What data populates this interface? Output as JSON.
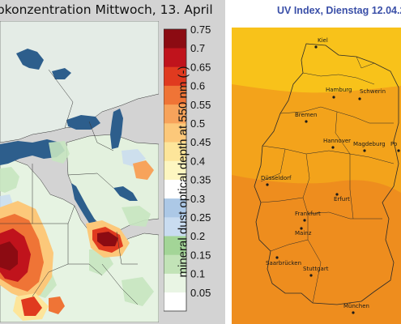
{
  "left_map": {
    "title": "ubkonzentration Mittwoch, 13. April",
    "colorbar_label": "mineral dust optical depth at 550 nm (-)",
    "colorbar_ticks": [
      "0.05",
      "0.1",
      "0.15",
      "0.2",
      "0.25",
      "0.3",
      "0.35",
      "0.4",
      "0.45",
      "0.5",
      "0.55",
      "0.6",
      "0.65",
      "0.7",
      "0.75"
    ],
    "colorbar_colors": [
      "#ffffff",
      "#e9f5e4",
      "#c2e3b7",
      "#a3d597",
      "#c9dcf0",
      "#acc8e6",
      "#ffffff",
      "#fdf6c0",
      "#fde59a",
      "#fcc87a",
      "#f7a35b",
      "#ef7436",
      "#e03a1f",
      "#c0131c",
      "#8c0b12"
    ],
    "colors": {
      "ocean": "#d3d3d3",
      "sea": "#2d5e8c",
      "land_low": "#eef6ec",
      "land_green": "#c6e6c0",
      "dust_high": "#b0101a"
    }
  },
  "right_map": {
    "title": "UV Index, Dienstag 12.04.2",
    "cities": [
      "Kiel",
      "Hamburg",
      "Schwerin",
      "Bremen",
      "Hannover",
      "Magdeburg",
      "Po",
      "Düsseldorf",
      "Erfurt",
      "Frankfurt",
      "Mainz",
      "Saarbrücken",
      "Stuttgart",
      "München"
    ],
    "colors": {
      "uv_low": "#f8c21a",
      "uv_mid": "#f3a31b",
      "uv_high": "#ee8d1e",
      "border": "#2a2a2a",
      "title": "#3a4fa8"
    }
  }
}
